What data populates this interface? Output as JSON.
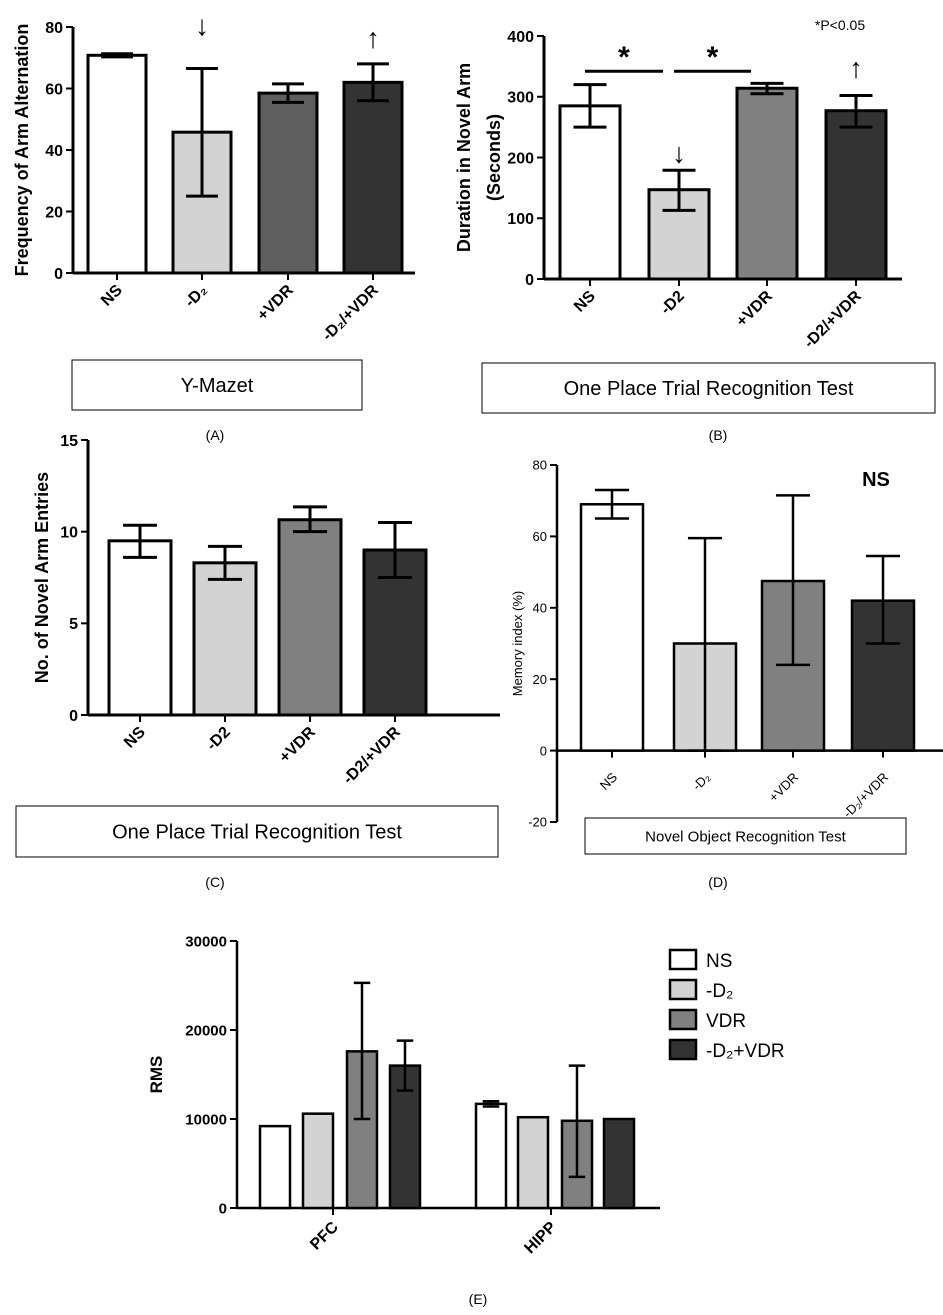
{
  "colors": {
    "NS": "#ffffff",
    "D2": "#d3d3d3",
    "VDR_A": "#5e5e5e",
    "VDR": "#808080",
    "D2VDR": "#333333"
  },
  "chart_data": [
    {
      "id": "A",
      "type": "bar",
      "caption": "(A)",
      "box_label": "Y-Mazet",
      "ylabel": "Frequency of Arm Alternation",
      "ylim": [
        0,
        80
      ],
      "yticks": [
        0,
        20,
        40,
        60,
        80
      ],
      "categories": [
        "NS",
        "-D₂",
        "+VDR",
        "-D₂/+VDR"
      ],
      "values": [
        70.8,
        45.8,
        58.5,
        62
      ],
      "err_low": [
        70.3,
        25,
        55.5,
        56
      ],
      "err_high": [
        71.3,
        66.5,
        61.5,
        68
      ],
      "annotations": [
        {
          "text": "↓",
          "category": "-D₂",
          "at": 80
        },
        {
          "text": "↑",
          "category": "-D₂/+VDR",
          "at": 76
        }
      ]
    },
    {
      "id": "B",
      "type": "bar",
      "caption": "(B)",
      "box_label": "One Place Trial Recognition Test",
      "ylabel": "Duration in Novel Arm",
      "ylabel2": "(Seconds)",
      "ylim": [
        0,
        400
      ],
      "yticks": [
        0,
        100,
        200,
        300,
        400
      ],
      "categories": [
        "NS",
        "-D2",
        "+VDR",
        "-D2/+VDR"
      ],
      "values": [
        285,
        147,
        314,
        277
      ],
      "err_low": [
        250,
        113,
        305,
        250
      ],
      "err_high": [
        320,
        179,
        322,
        302
      ],
      "note": "*P<0.05",
      "annotations": [
        {
          "text": "↓",
          "category": "-D2",
          "at": 205
        },
        {
          "text": "↑",
          "category": "-D2/+VDR",
          "at": 345
        }
      ],
      "significance": [
        {
          "text": "*",
          "from": "NS",
          "to": "-D2",
          "at": 342
        },
        {
          "text": "*",
          "from": "-D2",
          "to": "+VDR",
          "at": 342
        }
      ]
    },
    {
      "id": "C",
      "type": "bar",
      "caption": "(C)",
      "box_label": "One Place Trial Recognition Test",
      "ylabel": "No. of Novel Arm Entries",
      "ylim": [
        0,
        15
      ],
      "yticks": [
        0,
        5,
        10,
        15
      ],
      "categories": [
        "NS",
        "-D2",
        "+VDR",
        "-D2/+VDR"
      ],
      "values": [
        9.5,
        8.3,
        10.65,
        9.0
      ],
      "err_low": [
        8.6,
        7.4,
        10.0,
        7.5
      ],
      "err_high": [
        10.35,
        9.2,
        11.35,
        10.5
      ]
    },
    {
      "id": "D",
      "type": "bar",
      "caption": "(D)",
      "box_label": "Novel Object Recognition Test",
      "ylabel": "Memory index (%)",
      "ylim": [
        -20,
        80
      ],
      "yticks": [
        -20,
        0,
        20,
        40,
        60,
        80
      ],
      "categories": [
        "NS",
        "-D₂",
        "+VDR",
        "-D₂/+VDR"
      ],
      "values": [
        69,
        30,
        47.5,
        42
      ],
      "err_low": [
        65,
        0,
        24,
        30
      ],
      "err_high": [
        73,
        59.5,
        71.5,
        54.5
      ],
      "note": "NS"
    },
    {
      "id": "E",
      "type": "bar",
      "caption": "(E)",
      "ylabel": "RMS",
      "ylim": [
        0,
        30000
      ],
      "yticks": [
        0,
        10000,
        20000,
        30000
      ],
      "categories": [
        "PFC",
        "HIPP"
      ],
      "legend": {
        "position": "right",
        "entries": [
          "NS",
          "-D₂",
          "VDR",
          "-D₂+VDR"
        ]
      },
      "series": [
        {
          "name": "NS",
          "values": [
            9200,
            11700
          ],
          "err_low": [
            9200,
            11400
          ],
          "err_high": [
            9200,
            12000
          ]
        },
        {
          "name": "-D₂",
          "values": [
            10600,
            10200
          ],
          "err_low": [
            10600,
            10200
          ],
          "err_high": [
            10600,
            10200
          ]
        },
        {
          "name": "VDR",
          "values": [
            17600,
            9800
          ],
          "err_low": [
            10000,
            3500
          ],
          "err_high": [
            25300,
            16000
          ]
        },
        {
          "name": "-D₂+VDR",
          "values": [
            16000,
            10000
          ],
          "err_low": [
            13200,
            10000
          ],
          "err_high": [
            18800,
            10000
          ]
        }
      ]
    }
  ]
}
